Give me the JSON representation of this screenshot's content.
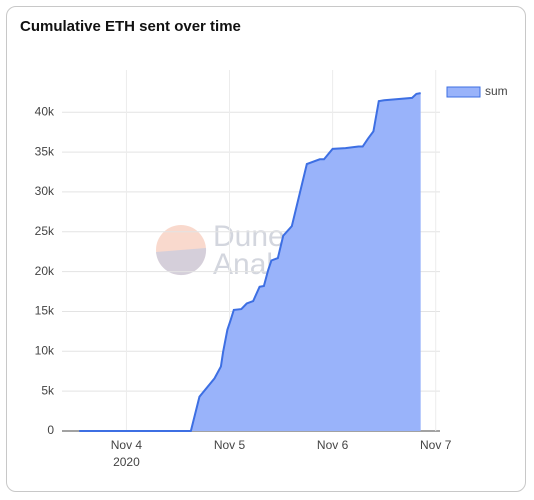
{
  "chart_data": {
    "type": "area",
    "title": "Cumulative ETH sent over time",
    "watermark": [
      "Dune",
      "Analytics"
    ],
    "x": [
      "2020-11-03 13:00",
      "2020-11-04 15:00",
      "2020-11-04 17:00",
      "2020-11-04 20:30",
      "2020-11-04 22:00",
      "2020-11-04 22:30",
      "2020-11-04 23:30",
      "2020-11-05 00:15",
      "2020-11-05 01:00",
      "2020-11-05 02:45",
      "2020-11-05 04:00",
      "2020-11-05 05:30",
      "2020-11-05 07:00",
      "2020-11-05 08:00",
      "2020-11-05 09:00",
      "2020-11-05 09:45",
      "2020-11-05 11:15",
      "2020-11-05 12:30",
      "2020-11-05 14:30",
      "2020-11-05 16:15",
      "2020-11-05 18:00",
      "2020-11-05 21:00",
      "2020-11-05 22:00",
      "2020-11-06 00:00",
      "2020-11-06 03:00",
      "2020-11-06 06:00",
      "2020-11-06 07:00",
      "2020-11-06 08:15",
      "2020-11-06 09:30",
      "2020-11-06 10:45",
      "2020-11-06 12:00",
      "2020-11-06 18:30",
      "2020-11-06 19:30",
      "2020-11-06 20:30"
    ],
    "series": [
      {
        "name": "sum",
        "color": "#3d6fe3",
        "fill": "#99b3fa",
        "values": [
          0,
          0,
          4300,
          6600,
          8100,
          9900,
          12700,
          13900,
          15200,
          15300,
          16000,
          16300,
          18100,
          18200,
          20200,
          21400,
          21700,
          24500,
          25700,
          29600,
          33500,
          34100,
          34100,
          35400,
          35500,
          35700,
          35700,
          36700,
          37600,
          41400,
          41500,
          41800,
          42300,
          42400
        ]
      }
    ],
    "xlim": [
      "2020-11-03 09:00",
      "2020-11-07 01:00"
    ],
    "xticks": [
      {
        "value": "2020-11-04",
        "label": "Nov 4"
      },
      {
        "value": "2020-11-05",
        "label": "Nov 5"
      },
      {
        "value": "2020-11-06",
        "label": "Nov 6"
      },
      {
        "value": "2020-11-07",
        "label": "Nov 7"
      }
    ],
    "x_year_label": "2020",
    "ylim": [
      0,
      45300
    ],
    "yticks": [
      0,
      {
        "value": 5000,
        "label": "5k"
      },
      {
        "value": 10000,
        "label": "10k"
      },
      {
        "value": 15000,
        "label": "15k"
      },
      {
        "value": 20000,
        "label": "20k"
      },
      {
        "value": 25000,
        "label": "25k"
      },
      {
        "value": 30000,
        "label": "30k"
      },
      {
        "value": 35000,
        "label": "35k"
      },
      {
        "value": 40000,
        "label": "40k"
      }
    ],
    "grid": true,
    "legend": "top-right"
  }
}
